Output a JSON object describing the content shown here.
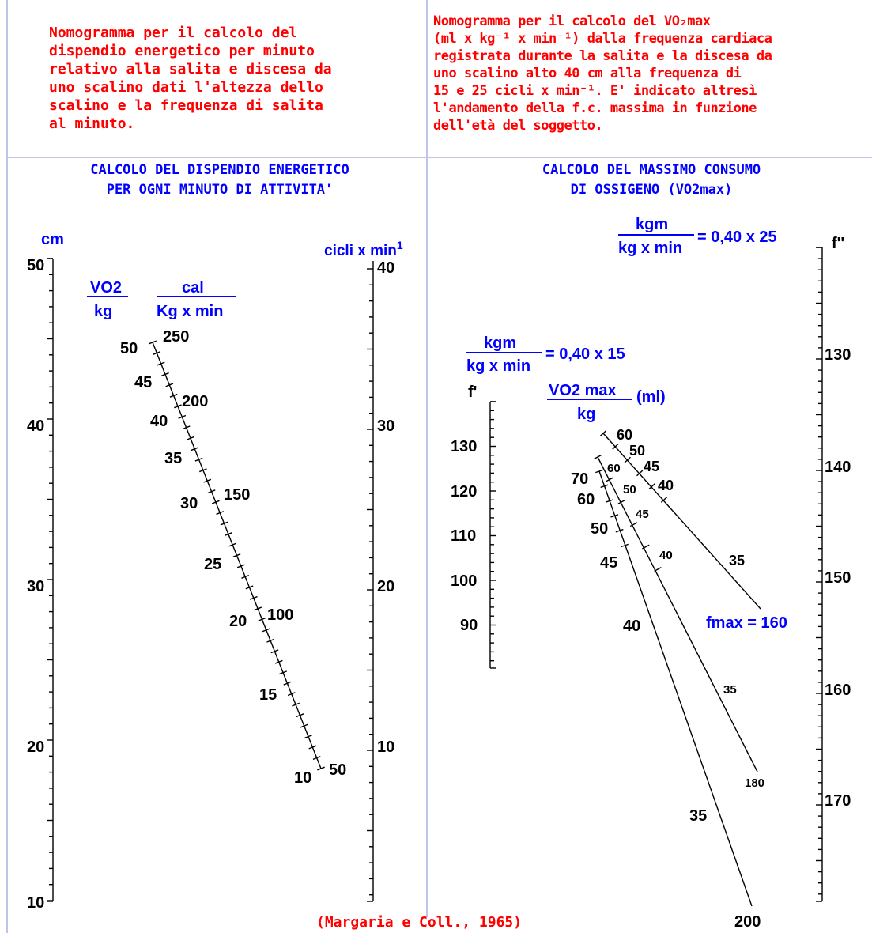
{
  "left_description": [
    "Nomogramma per il calcolo del",
    "dispendio energetico per minuto",
    "relativo alla salita e discesa da",
    "uno scalino dati l'altezza dello",
    "scalino e la frequenza di salita",
    "al minuto."
  ],
  "right_description": [
    "Nomogramma  per il calcolo del VO₂max",
    "(ml x kg⁻¹ x min⁻¹) dalla frequenza cardiaca",
    "registrata durante la salita e la discesa da",
    "uno scalino alto 40 cm alla frequenza di",
    "15 e 25 cicli x min⁻¹. E' indicato altresì",
    "l'andamento della f.c. massima in funzione",
    "dell'età del soggetto."
  ],
  "left_panel": {
    "title_line1": "CALCOLO DEL DISPENDIO ENERGETICO",
    "title_line2": "PER OGNI MINUTO DI ATTIVITA'",
    "height_axis": {
      "unit": "cm",
      "ticks": [
        "50",
        "40",
        "30",
        "20",
        "10"
      ]
    },
    "cycles_axis": {
      "unit": "cicli x min",
      "unit_sup": "1",
      "ticks": [
        "40",
        "30",
        "20",
        "10"
      ]
    },
    "vo2_header": {
      "num": "VO2",
      "den": "kg"
    },
    "cal_header": {
      "num": "cal",
      "den": "Kg x min"
    },
    "vo2_ticks": [
      "50",
      "45",
      "40",
      "35",
      "30",
      "25",
      "20",
      "15",
      "10"
    ],
    "cal_ticks": [
      "250",
      "200",
      "150",
      "100",
      "50"
    ]
  },
  "right_panel": {
    "title_line1": "CALCOLO DEL MASSIMO CONSUMO",
    "title_line2": "DI OSSIGENO (VO2max)",
    "formula_25": {
      "num": "kgm",
      "den": "kg x min",
      "rhs": "= 0,40 x 25"
    },
    "formula_15": {
      "num": "kgm",
      "den": "kg x min",
      "rhs": "= 0,40 x 15"
    },
    "f_prime_axis": {
      "label": "f'",
      "ticks": [
        "130",
        "120",
        "110",
        "100",
        "90"
      ]
    },
    "f_double_axis": {
      "label": "f''",
      "ticks": [
        "130",
        "140",
        "150",
        "160",
        "170"
      ]
    },
    "vo2max_header": {
      "num": "VO2 max",
      "den": "kg",
      "unit": "(ml)"
    },
    "line_160": {
      "ticks": [
        "60",
        "50",
        "45",
        "40",
        "35"
      ],
      "end_label": "fmax = 160"
    },
    "line_180": {
      "ticks": [
        "60",
        "50",
        "45",
        "40",
        "35"
      ],
      "end_label": "180"
    },
    "line_200": {
      "ticks": [
        "70",
        "60",
        "50",
        "45",
        "40",
        "35"
      ],
      "end_label": "200"
    }
  },
  "citation": "(Margaria e Coll., 1965)"
}
